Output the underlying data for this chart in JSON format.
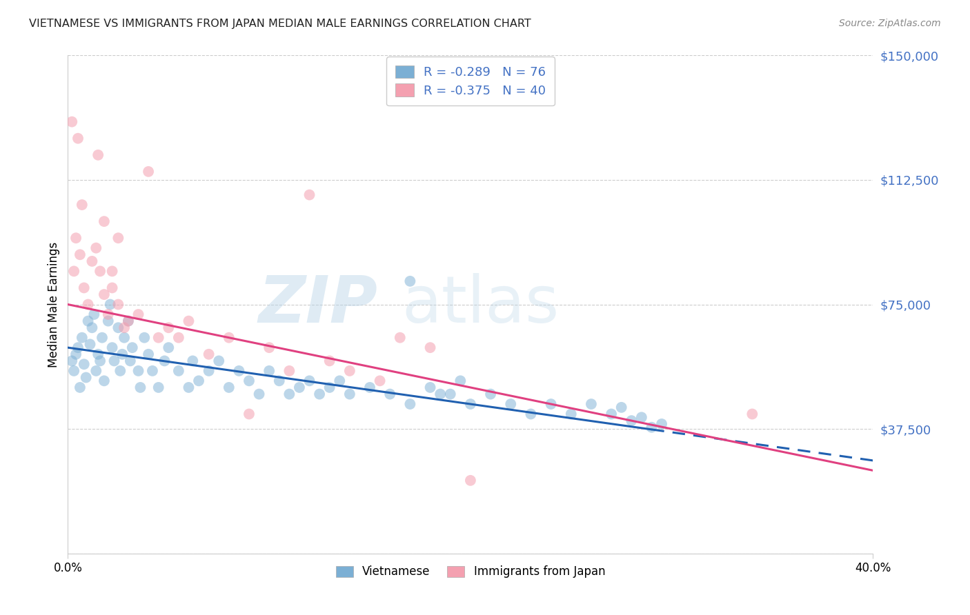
{
  "title": "VIETNAMESE VS IMMIGRANTS FROM JAPAN MEDIAN MALE EARNINGS CORRELATION CHART",
  "source": "Source: ZipAtlas.com",
  "ylabel": "Median Male Earnings",
  "yticks": [
    0,
    37500,
    75000,
    112500,
    150000
  ],
  "ytick_labels": [
    "",
    "$37,500",
    "$75,000",
    "$112,500",
    "$150,000"
  ],
  "xmin": 0.0,
  "xmax": 0.4,
  "ymin": 0,
  "ymax": 150000,
  "blue_color": "#7bafd4",
  "pink_color": "#f4a0b0",
  "blue_line_color": "#2060b0",
  "pink_line_color": "#e04080",
  "legend_R1": "-0.289",
  "legend_N1": "76",
  "legend_R2": "-0.375",
  "legend_N2": "40",
  "label_blue": "Vietnamese",
  "label_pink": "Immigrants from Japan",
  "title_color": "#222222",
  "source_color": "#888888",
  "legend_text_color": "#4472c4",
  "axis_tick_color": "#4472c4",
  "grid_color": "#cccccc",
  "background": "#ffffff",
  "blue_line_y0": 62000,
  "blue_line_y1": 28000,
  "blue_line_x_solid_end": 0.29,
  "pink_line_y0": 75000,
  "pink_line_y1": 25000,
  "blue_pts_x": [
    0.002,
    0.003,
    0.004,
    0.005,
    0.006,
    0.007,
    0.008,
    0.009,
    0.01,
    0.011,
    0.012,
    0.013,
    0.014,
    0.015,
    0.016,
    0.017,
    0.018,
    0.02,
    0.021,
    0.022,
    0.023,
    0.025,
    0.026,
    0.027,
    0.028,
    0.03,
    0.031,
    0.032,
    0.035,
    0.036,
    0.038,
    0.04,
    0.042,
    0.045,
    0.048,
    0.05,
    0.055,
    0.06,
    0.062,
    0.065,
    0.07,
    0.075,
    0.08,
    0.085,
    0.09,
    0.095,
    0.1,
    0.105,
    0.11,
    0.115,
    0.12,
    0.125,
    0.13,
    0.135,
    0.14,
    0.15,
    0.16,
    0.17,
    0.18,
    0.19,
    0.2,
    0.21,
    0.22,
    0.23,
    0.24,
    0.25,
    0.26,
    0.27,
    0.28,
    0.29,
    0.17,
    0.185,
    0.195,
    0.275,
    0.285,
    0.295
  ],
  "blue_pts_y": [
    58000,
    55000,
    60000,
    62000,
    50000,
    65000,
    57000,
    53000,
    70000,
    63000,
    68000,
    72000,
    55000,
    60000,
    58000,
    65000,
    52000,
    70000,
    75000,
    62000,
    58000,
    68000,
    55000,
    60000,
    65000,
    70000,
    58000,
    62000,
    55000,
    50000,
    65000,
    60000,
    55000,
    50000,
    58000,
    62000,
    55000,
    50000,
    58000,
    52000,
    55000,
    58000,
    50000,
    55000,
    52000,
    48000,
    55000,
    52000,
    48000,
    50000,
    52000,
    48000,
    50000,
    52000,
    48000,
    50000,
    48000,
    45000,
    50000,
    48000,
    45000,
    48000,
    45000,
    42000,
    45000,
    42000,
    45000,
    42000,
    40000,
    38000,
    82000,
    48000,
    52000,
    44000,
    41000,
    39000
  ],
  "pink_pts_x": [
    0.002,
    0.003,
    0.004,
    0.005,
    0.006,
    0.007,
    0.008,
    0.01,
    0.012,
    0.014,
    0.016,
    0.018,
    0.02,
    0.022,
    0.025,
    0.028,
    0.03,
    0.035,
    0.04,
    0.045,
    0.05,
    0.055,
    0.06,
    0.07,
    0.08,
    0.09,
    0.1,
    0.11,
    0.12,
    0.13,
    0.14,
    0.155,
    0.165,
    0.18,
    0.2,
    0.34,
    0.015,
    0.025,
    0.018,
    0.022
  ],
  "pink_pts_y": [
    130000,
    85000,
    95000,
    125000,
    90000,
    105000,
    80000,
    75000,
    88000,
    92000,
    85000,
    78000,
    72000,
    80000,
    75000,
    68000,
    70000,
    72000,
    115000,
    65000,
    68000,
    65000,
    70000,
    60000,
    65000,
    42000,
    62000,
    55000,
    108000,
    58000,
    55000,
    52000,
    65000,
    62000,
    22000,
    42000,
    120000,
    95000,
    100000,
    85000
  ]
}
